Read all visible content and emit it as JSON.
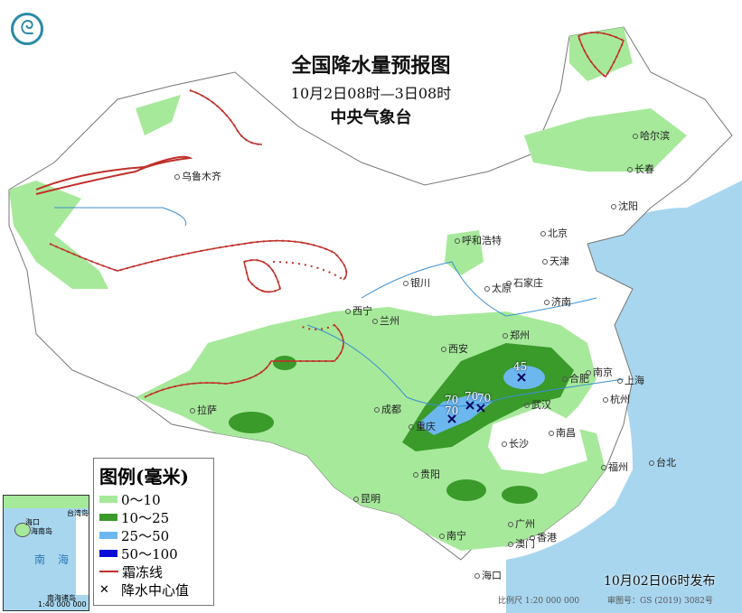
{
  "header": {
    "title": "全国降水量预报图",
    "period": "10月2日08时—3日08时",
    "issuer": "中央气象台"
  },
  "logo": {
    "icon": "cma-logo"
  },
  "legend": {
    "title": "图例(毫米)",
    "items": [
      {
        "label": "0～10",
        "color": "#a6e99a"
      },
      {
        "label": "10～25",
        "color": "#3a9a2a"
      },
      {
        "label": "25～50",
        "color": "#6cb8ee"
      },
      {
        "label": "50～100",
        "color": "#0a0ad8"
      },
      {
        "label": "霜冻线",
        "color": "#c0302a"
      },
      {
        "label": "降水中心值",
        "color": "#000000"
      }
    ]
  },
  "cities": [
    "乌鲁木齐",
    "哈尔滨",
    "长春",
    "沈阳",
    "北京",
    "天津",
    "呼和浩特",
    "石家庄",
    "太原",
    "银川",
    "济南",
    "西宁",
    "兰州",
    "郑州",
    "西安",
    "合肥",
    "南京",
    "上海",
    "杭州",
    "成都",
    "武汉",
    "重庆",
    "拉萨",
    "南昌",
    "长沙",
    "福州",
    "台北",
    "贵阳",
    "昆明",
    "南宁",
    "广州",
    "澳门",
    "香港",
    "海口"
  ],
  "precip_centers": [
    "45",
    "70",
    "70",
    "70",
    "70"
  ],
  "inset": {
    "sea": "南海",
    "islands": "南海诸岛",
    "scale": "1:40 000 000",
    "labels": [
      "海口",
      "海南岛",
      "台湾岛"
    ]
  },
  "footer": {
    "published": "10月02日06时发布",
    "scale": "比例尺 1:20 000 000",
    "approval": "审图号：GS (2019) 3082号"
  }
}
